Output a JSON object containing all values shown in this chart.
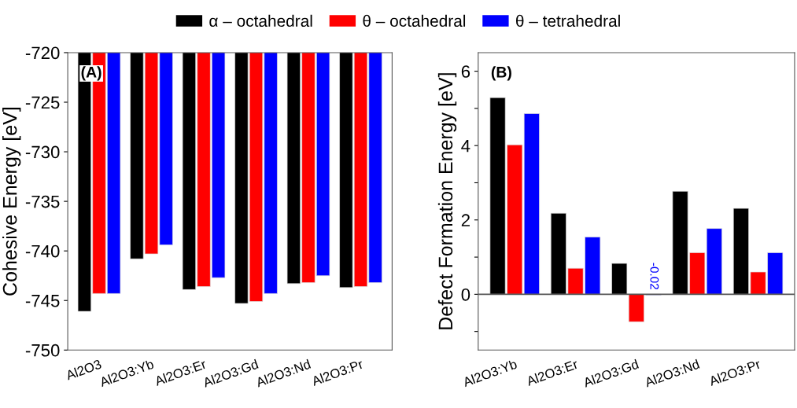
{
  "chart_data": [
    {
      "type": "bar",
      "ylabel": "Cohesive Energy [eV]",
      "categories": [
        "Al2O3",
        "Al2O3:Yb",
        "Al2O3:Er",
        "Al2O3:Gd",
        "Al2O3:Nd",
        "Al2O3:Pr"
      ],
      "ylim": [
        -750,
        -720
      ],
      "yticks": [
        -750,
        -745,
        -740,
        -735,
        -730,
        -725,
        -720
      ],
      "legend": "top",
      "annotations": [
        "(A)"
      ],
      "series": [
        {
          "name": "α – octahedral",
          "color": "#000000",
          "values": [
            -746.1,
            -740.8,
            -743.9,
            -745.3,
            -743.3,
            -743.7
          ]
        },
        {
          "name": "θ – octahedral",
          "color": "#ff0000",
          "values": [
            -744.3,
            -740.3,
            -743.6,
            -745.1,
            -743.2,
            -743.6
          ]
        },
        {
          "name": "θ – tetrahedral",
          "color": "#0000ff",
          "values": [
            -744.3,
            -739.4,
            -742.7,
            -744.3,
            -742.5,
            -743.2
          ]
        }
      ]
    },
    {
      "type": "bar",
      "ylabel": "Defect Formation Energy [eV]",
      "categories": [
        "Al2O3:Yb",
        "Al2O3:Er",
        "Al2O3:Gd",
        "Al2O3:Nd",
        "Al2O3:Pr"
      ],
      "ylim": [
        -1.5,
        6.5
      ],
      "yticks": [
        {
          "value": -1,
          "label": null
        },
        0,
        {
          "value": 1,
          "label": null
        },
        2,
        {
          "value": 3,
          "label": null
        },
        4,
        {
          "value": 5,
          "label": null
        },
        6
      ],
      "annotations": [
        "(B)"
      ],
      "series": [
        {
          "color": "#000000",
          "values": [
            5.29,
            2.18,
            0.83,
            2.77,
            2.31
          ]
        },
        {
          "color": "#ff0000",
          "values": [
            4.02,
            0.7,
            -0.74,
            1.12,
            0.6
          ]
        },
        {
          "color": "#0000ff",
          "values": [
            4.86,
            1.54,
            -0.02,
            1.77,
            1.12
          ],
          "value_labels": [
            null,
            null,
            "-0.02",
            null,
            null
          ]
        }
      ]
    }
  ]
}
